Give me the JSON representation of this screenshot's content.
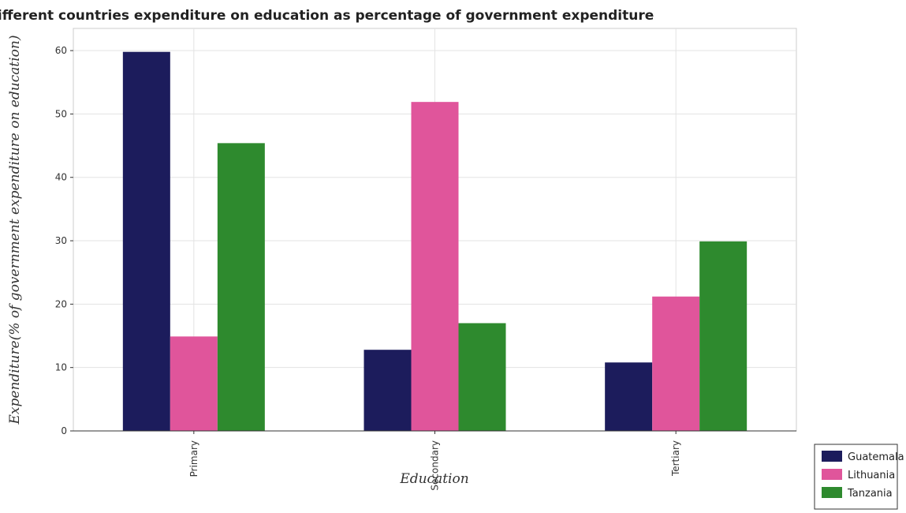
{
  "chart_data": {
    "type": "bar",
    "title": "Different countries expenditure on education as percentage of government expenditure",
    "xlabel": "Education",
    "ylabel": "Expenditure(% of government expenditure on education)",
    "categories": [
      "Primary",
      "Secondary",
      "Tertiary"
    ],
    "series": [
      {
        "name": "Guatemala",
        "color": "#1c1c5c",
        "values": [
          59.8,
          12.8,
          10.8
        ]
      },
      {
        "name": "Lithuania",
        "color": "#e0559b",
        "values": [
          14.9,
          51.9,
          21.2
        ]
      },
      {
        "name": "Tanzania",
        "color": "#2e8a2e",
        "values": [
          45.4,
          17.0,
          29.9
        ]
      }
    ],
    "ylim": [
      0,
      63.5
    ],
    "yticks": [
      0,
      10,
      20,
      30,
      40,
      50,
      60
    ],
    "grid": true,
    "legend_position": "bottom-right"
  }
}
